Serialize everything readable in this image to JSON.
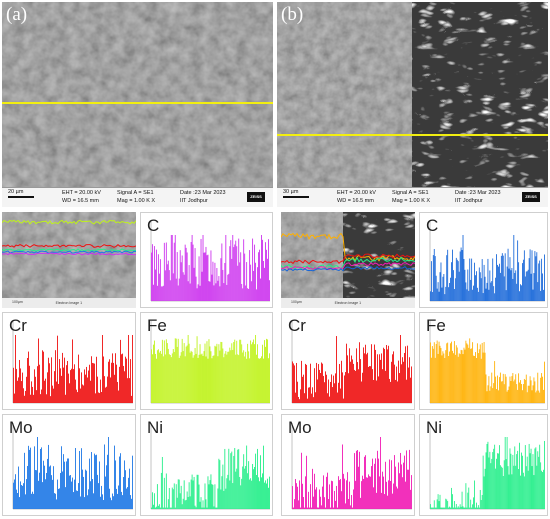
{
  "panels": {
    "a": {
      "label": "(a)",
      "info": {
        "scale": "20 µm",
        "eht": "EHT = 20.00 kV",
        "wd": "WD = 16.5 mm",
        "signal": "Signal A = SE1",
        "mag": "Mag =  1.00 K X",
        "date": "Date :23 Mar 2023",
        "inst": "IIT Jodhpur",
        "logo": "ZEISS"
      },
      "overlay_caption": "Electron Image 1",
      "overlay_scale": "100µm"
    },
    "b": {
      "label": "(b)",
      "info": {
        "scale": "30 µm",
        "eht": "EHT = 20.00 kV",
        "wd": "WD = 16.5 mm",
        "signal": "Signal A = SE1",
        "mag": "Mag =  1.00 K X",
        "date": "Date :23 Mar 2023",
        "inst": "IIT Jodhpur",
        "logo": "ZEISS"
      },
      "overlay_caption": "Electron Image 1",
      "overlay_scale": "100µm"
    }
  },
  "colors": {
    "C_a": "#cc33ee",
    "C_b": "#1565d8",
    "Cr": "#ee1111",
    "Fe_a": "#bff21a",
    "Fe_b": "#ffb000",
    "Mo_a": "#1e78e6",
    "Mo_b": "#f01ab4",
    "Ni": "#22ee88",
    "yellow": "#f2ee10"
  },
  "chart_data": [
    {
      "type": "bar",
      "title": "C",
      "panel": "a",
      "level": [
        0.55,
        0.55
      ],
      "noise": 0.4,
      "ylim": [
        0,
        1
      ]
    },
    {
      "type": "bar",
      "title": "Cr",
      "panel": "a",
      "level": [
        0.45,
        0.45
      ],
      "noise": 0.35,
      "ylim": [
        0,
        1
      ]
    },
    {
      "type": "bar",
      "title": "Fe",
      "panel": "a",
      "level": [
        0.8,
        0.8
      ],
      "noise": 0.15,
      "ylim": [
        0,
        1
      ]
    },
    {
      "type": "bar",
      "title": "Mo",
      "panel": "a",
      "level": [
        0.5,
        0.5
      ],
      "noise": 0.4,
      "ylim": [
        0,
        1
      ]
    },
    {
      "type": "bar",
      "title": "Ni",
      "panel": "a",
      "level": [
        0.2,
        0.55
      ],
      "split": 0.55,
      "noise": 0.3,
      "ylim": [
        0,
        1
      ]
    },
    {
      "type": "bar",
      "title": "C",
      "panel": "b",
      "level": [
        0.45,
        0.45
      ],
      "noise": 0.35,
      "ylim": [
        0,
        1
      ]
    },
    {
      "type": "bar",
      "title": "Cr",
      "panel": "b",
      "level": [
        0.35,
        0.6
      ],
      "split": 0.45,
      "noise": 0.3,
      "ylim": [
        0,
        1
      ]
    },
    {
      "type": "bar",
      "title": "Fe",
      "panel": "b",
      "level": [
        0.8,
        0.3
      ],
      "split": 0.48,
      "noise": 0.15,
      "ylim": [
        0,
        1
      ]
    },
    {
      "type": "bar",
      "title": "Mo",
      "panel": "b",
      "level": [
        0.2,
        0.5
      ],
      "split": 0.5,
      "noise": 0.35,
      "ylim": [
        0,
        1
      ]
    },
    {
      "type": "bar",
      "title": "Ni",
      "panel": "b",
      "level": [
        0.05,
        0.7
      ],
      "split": 0.45,
      "noise": 0.25,
      "ylim": [
        0,
        1
      ]
    }
  ]
}
